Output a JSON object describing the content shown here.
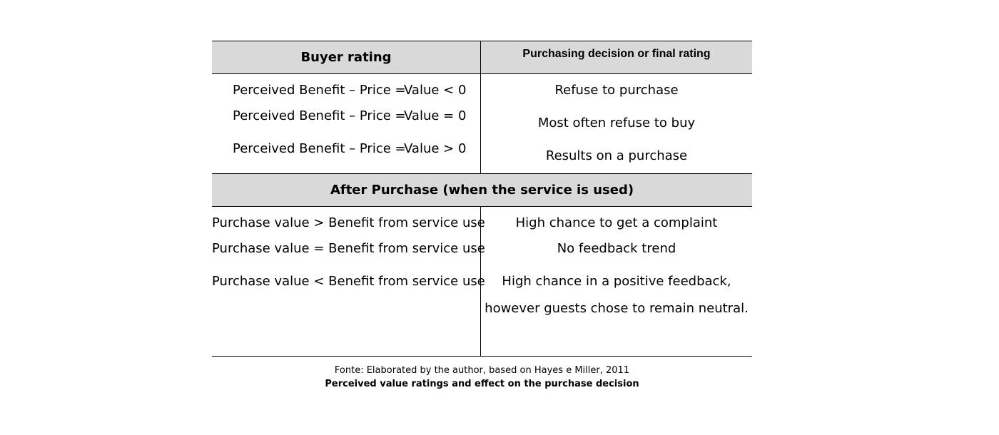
{
  "table": {
    "header": {
      "left": "Buyer rating",
      "right": "Purchasing decision or final rating"
    },
    "before_rows": [
      {
        "equation": "Perceived Benefit – Price =",
        "value": "Value < 0",
        "decision": "Refuse to purchase"
      },
      {
        "equation": "Perceived Benefit – Price =",
        "value": "Value = 0",
        "decision": "Most often refuse to buy"
      },
      {
        "equation": "Perceived Benefit – Price =",
        "value": "Value > 0",
        "decision": "Results on a purchase"
      }
    ],
    "section_header": "After Purchase (when the service is used)",
    "after_rows": [
      {
        "condition": "Purchase value > Benefit from service use",
        "outcome": "High chance to get a complaint"
      },
      {
        "condition": "Purchase value = Benefit from service use",
        "outcome": "No feedback trend"
      },
      {
        "condition": "Purchase value < Benefit from service use",
        "outcome": "High chance in a positive feedback,",
        "outcome_line2": "however guests chose to remain neutral."
      }
    ]
  },
  "caption": {
    "source": "Fonte: Elaborated by the author, based on Hayes e Miller, 2011",
    "title": "Perceived value ratings and effect on the purchase decision"
  },
  "colors": {
    "header_fill": "#d9d9d9",
    "rule": "#000000"
  }
}
